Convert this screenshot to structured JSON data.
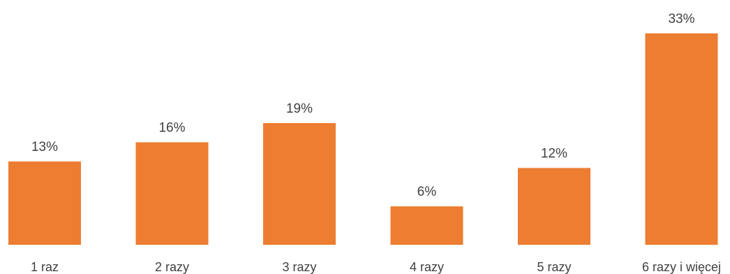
{
  "chart_data": {
    "type": "bar",
    "categories": [
      "1 raz",
      "2 razy",
      "3 razy",
      "4 razy",
      "5 razy",
      "6 razy i więcej"
    ],
    "values": [
      13,
      16,
      19,
      6,
      12,
      33
    ],
    "data_labels": [
      "13%",
      "16%",
      "19%",
      "6%",
      "12%",
      "33%"
    ],
    "unit": "%",
    "title": "",
    "xlabel": "",
    "ylabel": "",
    "ylim": [
      0,
      33
    ],
    "grid": false,
    "legend": "none",
    "bar_color": "#ED7D31",
    "text_color": "#404040"
  }
}
